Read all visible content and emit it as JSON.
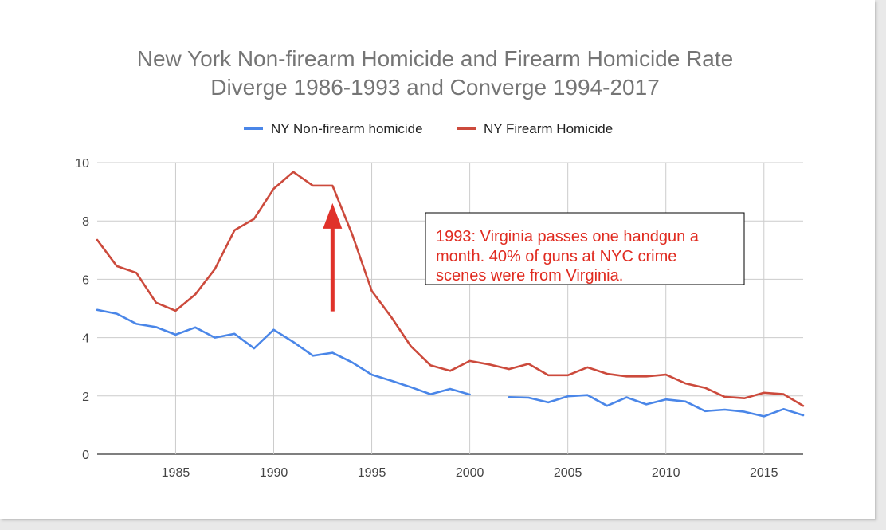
{
  "chart_data": {
    "type": "line",
    "title_lines": [
      "New York Non-firearm Homicide and Firearm Homicide Rate",
      "Diverge 1986-1993 and Converge 1994-2017"
    ],
    "xlabel": "",
    "ylabel": "",
    "xlim": [
      1981,
      2017
    ],
    "ylim": [
      0,
      10
    ],
    "x_ticks": [
      1985,
      1990,
      1995,
      2000,
      2005,
      2010,
      2015
    ],
    "y_ticks": [
      0,
      2,
      4,
      6,
      8,
      10
    ],
    "grid": true,
    "legend_position": "top",
    "series": [
      {
        "name": "NY Non-firearm homicide",
        "color": "#4a86e8",
        "points": [
          [
            1981,
            4.95
          ],
          [
            1982,
            4.82
          ],
          [
            1983,
            4.47
          ],
          [
            1984,
            4.36
          ],
          [
            1985,
            4.1
          ],
          [
            1986,
            4.35
          ],
          [
            1987,
            4.0
          ],
          [
            1988,
            4.13
          ],
          [
            1989,
            3.63
          ],
          [
            1990,
            4.27
          ],
          [
            1991,
            3.85
          ],
          [
            1992,
            3.38
          ],
          [
            1993,
            3.48
          ],
          [
            1994,
            3.15
          ],
          [
            1995,
            2.73
          ],
          [
            1996,
            2.52
          ],
          [
            1997,
            2.3
          ],
          [
            1998,
            2.06
          ],
          [
            1999,
            2.24
          ],
          [
            2000,
            2.05
          ],
          [
            2001,
            null
          ],
          [
            2002,
            1.96
          ],
          [
            2003,
            1.94
          ],
          [
            2004,
            1.78
          ],
          [
            2005,
            1.99
          ],
          [
            2006,
            2.03
          ],
          [
            2007,
            1.66
          ],
          [
            2008,
            1.95
          ],
          [
            2009,
            1.71
          ],
          [
            2010,
            1.88
          ],
          [
            2011,
            1.81
          ],
          [
            2012,
            1.48
          ],
          [
            2013,
            1.53
          ],
          [
            2014,
            1.46
          ],
          [
            2015,
            1.3
          ],
          [
            2016,
            1.55
          ],
          [
            2017,
            1.34
          ]
        ]
      },
      {
        "name": "NY Firearm Homicide",
        "color": "#cc4a3c",
        "points": [
          [
            1981,
            7.35
          ],
          [
            1982,
            6.45
          ],
          [
            1983,
            6.22
          ],
          [
            1984,
            5.2
          ],
          [
            1985,
            4.92
          ],
          [
            1986,
            5.48
          ],
          [
            1987,
            6.35
          ],
          [
            1988,
            7.68
          ],
          [
            1989,
            8.07
          ],
          [
            1990,
            9.1
          ],
          [
            1991,
            9.68
          ],
          [
            1992,
            9.21
          ],
          [
            1993,
            9.21
          ],
          [
            1994,
            7.55
          ],
          [
            1995,
            5.6
          ],
          [
            1996,
            4.7
          ],
          [
            1997,
            3.7
          ],
          [
            1998,
            3.05
          ],
          [
            1999,
            2.86
          ],
          [
            2000,
            3.2
          ],
          [
            2001,
            3.08
          ],
          [
            2002,
            2.92
          ],
          [
            2003,
            3.1
          ],
          [
            2004,
            2.71
          ],
          [
            2005,
            2.71
          ],
          [
            2006,
            2.98
          ],
          [
            2007,
            2.76
          ],
          [
            2008,
            2.67
          ],
          [
            2009,
            2.67
          ],
          [
            2010,
            2.73
          ],
          [
            2011,
            2.43
          ],
          [
            2012,
            2.28
          ],
          [
            2013,
            1.97
          ],
          [
            2014,
            1.92
          ],
          [
            2015,
            2.11
          ],
          [
            2016,
            2.06
          ],
          [
            2017,
            1.66
          ]
        ]
      }
    ],
    "annotation": {
      "lines": [
        "1993: Virginia passes one handgun a",
        "month. 40% of guns at NYC crime",
        "scenes were from Virginia."
      ],
      "text_color": "#e02b20",
      "arrow_color": "#e0322a",
      "arrow_x": 1993,
      "arrow_y_from": 4.9,
      "arrow_y_to": 8.5
    }
  }
}
